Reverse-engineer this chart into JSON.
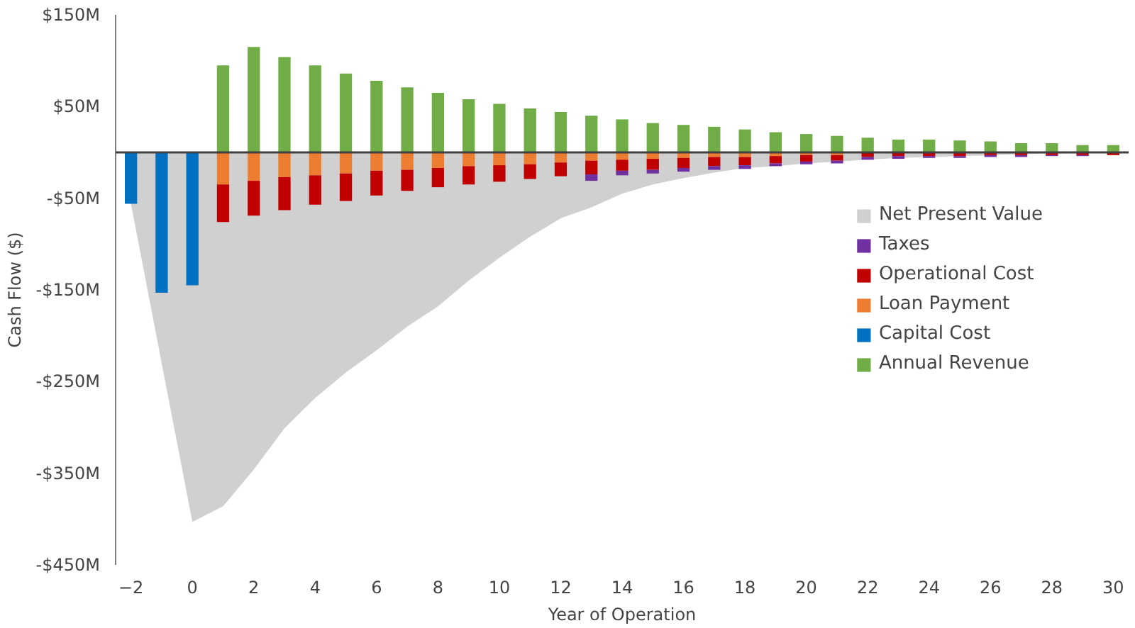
{
  "chart_data": {
    "type": "bar",
    "stacked": true,
    "xlabel": "Year of Operation",
    "ylabel": "Cash Flow ($)",
    "x": [
      -2,
      -1,
      0,
      1,
      2,
      3,
      4,
      5,
      6,
      7,
      8,
      9,
      10,
      11,
      12,
      13,
      14,
      15,
      16,
      17,
      18,
      19,
      20,
      21,
      22,
      23,
      24,
      25,
      26,
      27,
      28,
      29,
      30
    ],
    "xlim": [
      -2.5,
      30.5
    ],
    "xticks": [
      -2,
      0,
      2,
      4,
      6,
      8,
      10,
      12,
      14,
      16,
      18,
      20,
      22,
      24,
      26,
      28,
      30
    ],
    "ylim": [
      -450,
      150
    ],
    "yticks": [
      {
        "value": 150,
        "label": "$150M"
      },
      {
        "value": 50,
        "label": "$50M"
      },
      {
        "value": -50,
        "label": "-$50M"
      },
      {
        "value": -150,
        "label": "-$150M"
      },
      {
        "value": -250,
        "label": "-$250M"
      },
      {
        "value": -350,
        "label": "-$350M"
      },
      {
        "value": -450,
        "label": "-$450M"
      }
    ],
    "grid": false,
    "legend": "right",
    "ref_lines": [
      {
        "axis": "y",
        "value": 0,
        "label": null,
        "color": "#404040"
      }
    ],
    "series": [
      {
        "name": "Annual Revenue",
        "color": "#70ad47",
        "values": [
          null,
          null,
          null,
          95,
          115,
          104,
          95,
          86,
          78,
          71,
          65,
          58,
          53,
          48,
          44,
          40,
          36,
          32,
          30,
          28,
          25,
          22,
          20,
          18,
          16,
          14,
          14,
          13,
          12,
          10,
          10,
          8,
          8
        ]
      },
      {
        "name": "Capital Cost",
        "color": "#0070c0",
        "values": [
          -56,
          -153,
          -145,
          null,
          null,
          null,
          null,
          null,
          null,
          null,
          null,
          null,
          null,
          null,
          null,
          null,
          null,
          null,
          null,
          null,
          null,
          null,
          null,
          null,
          null,
          null,
          null,
          null,
          null,
          null,
          null,
          null,
          null
        ]
      },
      {
        "name": "Loan Payment",
        "color": "#ed7d31",
        "values": [
          null,
          null,
          null,
          -35,
          -31,
          -27,
          -25,
          -23,
          -20,
          -19,
          -17,
          -15,
          -14,
          -13,
          -11,
          -9,
          -8,
          -7,
          -6,
          -5,
          -5,
          -4,
          -3,
          -3,
          null,
          null,
          null,
          null,
          null,
          null,
          null,
          null,
          null
        ]
      },
      {
        "name": "Operational Cost",
        "color": "#c00000",
        "values": [
          null,
          null,
          null,
          -41,
          -38,
          -36,
          -32,
          -30,
          -27,
          -23,
          -21,
          -20,
          -18,
          -16,
          -15,
          -15,
          -12,
          -12,
          -11,
          -10,
          -9,
          -8,
          -7,
          -6,
          -5,
          -4,
          -4,
          -4,
          -3,
          -3,
          -3,
          -3,
          -3
        ]
      },
      {
        "name": "Taxes",
        "color": "#7030a0",
        "values": [
          null,
          null,
          null,
          null,
          null,
          null,
          null,
          null,
          null,
          null,
          null,
          null,
          null,
          null,
          null,
          -7,
          -5,
          -4,
          -4,
          -4,
          -4,
          -3,
          -3,
          -3,
          -3,
          -3,
          -2,
          -2,
          -2,
          -2,
          -1,
          -1,
          null
        ]
      },
      {
        "name": "Net Present Value",
        "type": "area",
        "color": "#d0d0d0",
        "values": [
          -56,
          -230,
          -403,
          -386,
          -346,
          -301,
          -268,
          -240,
          -216,
          -190,
          -168,
          -140,
          -115,
          -92,
          -72,
          -60,
          -45,
          -35,
          -28,
          -22,
          -17,
          -15,
          -12,
          -10,
          -8,
          -6,
          -5,
          -4,
          -3,
          -2,
          -1,
          -1,
          0
        ]
      }
    ]
  }
}
